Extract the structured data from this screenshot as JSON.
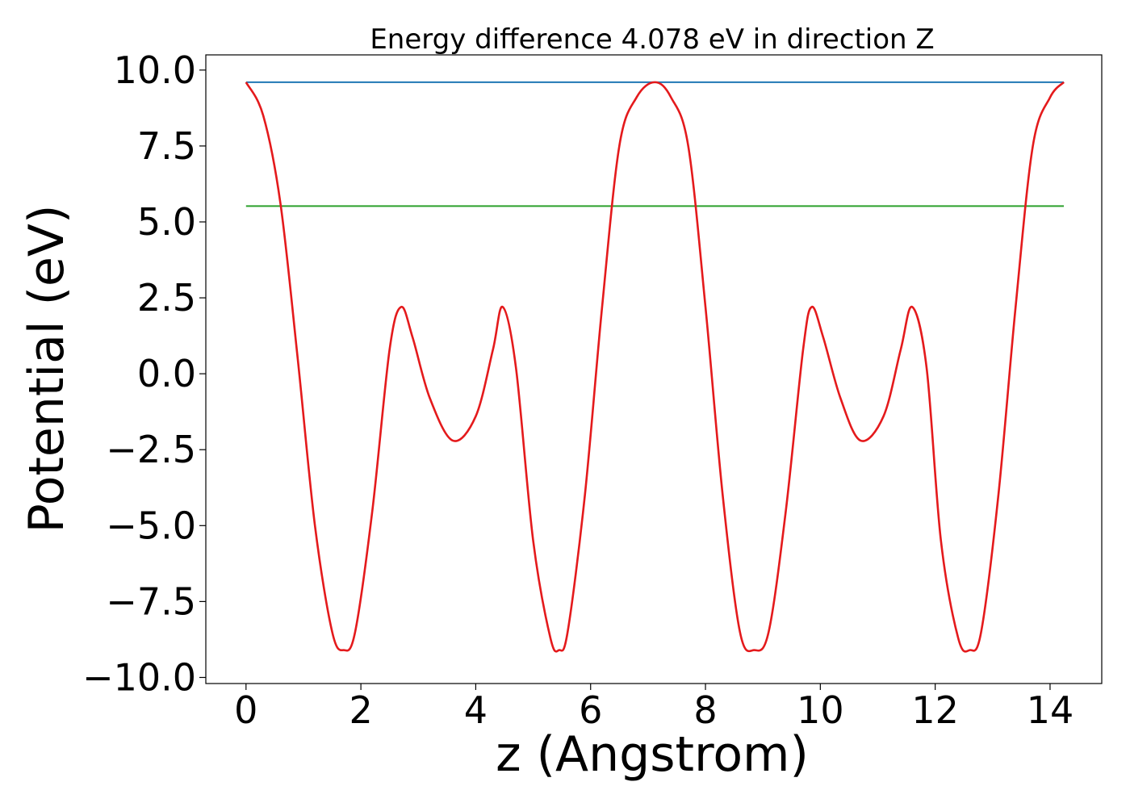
{
  "chart_data": {
    "type": "line",
    "title": "Energy difference 4.078 eV in direction Z",
    "xlabel": "z (Angstrom)",
    "ylabel": "Potential (eV)",
    "xlim": [
      -0.7,
      14.9
    ],
    "ylim": [
      -10.2,
      10.5
    ],
    "xticks": [
      0,
      2,
      4,
      6,
      8,
      10,
      12,
      14
    ],
    "xtick_labels": [
      "0",
      "2",
      "4",
      "6",
      "8",
      "10",
      "12",
      "14"
    ],
    "yticks": [
      -10,
      -7.5,
      -5,
      -2.5,
      0,
      2.5,
      5,
      7.5,
      10
    ],
    "ytick_labels": [
      "−10.0",
      "−7.5",
      "−5.0",
      "−2.5",
      "0.0",
      "2.5",
      "5.0",
      "7.5",
      "10.0"
    ],
    "grid": false,
    "series": [
      {
        "color": "#1f77b4",
        "x": [
          0,
          14.24
        ],
        "y": [
          9.6,
          9.6
        ]
      },
      {
        "color": "#2ca02c",
        "x": [
          0,
          14.24
        ],
        "y": [
          5.52,
          5.52
        ]
      },
      {
        "color": "#e41a1c",
        "x": [
          0,
          0.3,
          0.6,
          0.9,
          1.2,
          1.5,
          1.7,
          1.9,
          2.2,
          2.5,
          2.7,
          2.9,
          3.2,
          3.6,
          4.0,
          4.3,
          4.47,
          4.7,
          5.0,
          5.3,
          5.45,
          5.6,
          5.9,
          6.2,
          6.5,
          6.8,
          7.12,
          7.4,
          7.7,
          8.0,
          8.3,
          8.6,
          8.85,
          9.1,
          9.4,
          9.7,
          9.85,
          10.05,
          10.35,
          10.7,
          11.1,
          11.4,
          11.6,
          11.85,
          12.1,
          12.4,
          12.6,
          12.8,
          13.1,
          13.4,
          13.7,
          14.0,
          14.24
        ],
        "y": [
          9.6,
          8.5,
          5.6,
          0.5,
          -5.0,
          -8.5,
          -9.1,
          -8.5,
          -4.5,
          0.8,
          2.2,
          1.2,
          -0.8,
          -2.2,
          -1.4,
          0.8,
          2.2,
          0.2,
          -5.5,
          -8.7,
          -9.1,
          -8.5,
          -4.0,
          2.2,
          7.5,
          9.1,
          9.6,
          9.1,
          7.5,
          2.2,
          -4.0,
          -8.5,
          -9.1,
          -8.5,
          -4.5,
          0.8,
          2.2,
          1.2,
          -0.8,
          -2.2,
          -1.4,
          0.8,
          2.2,
          0.2,
          -5.5,
          -8.7,
          -9.1,
          -8.5,
          -4.0,
          2.2,
          7.5,
          9.1,
          9.6
        ]
      }
    ]
  }
}
